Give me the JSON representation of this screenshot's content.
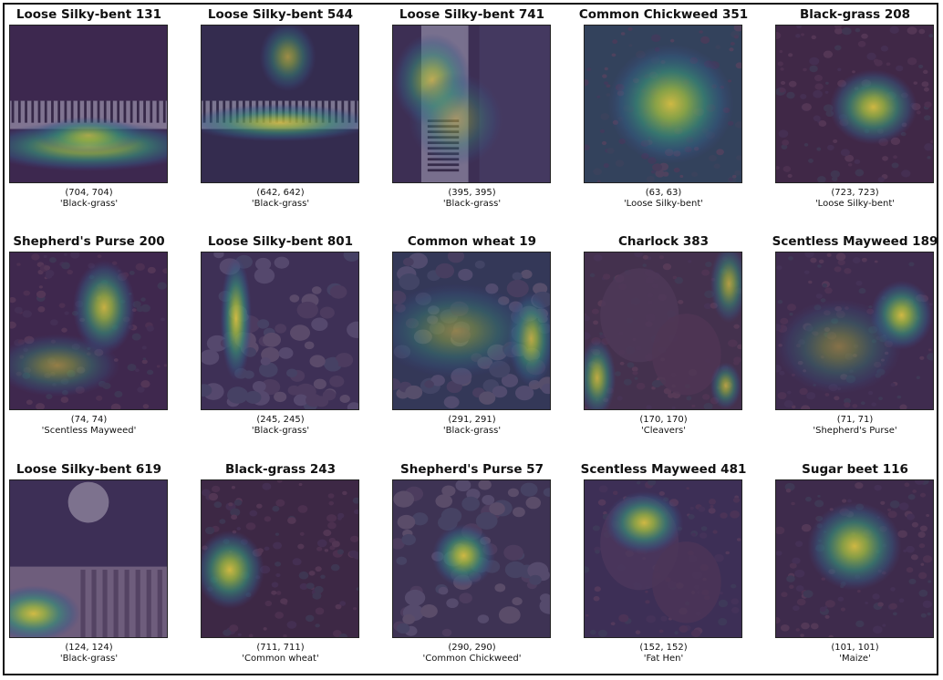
{
  "panels": [
    {
      "title": "Loose Silky-bent 131",
      "coords": "(704, 704)",
      "label": "'Black-grass'",
      "heat": [
        [
          0.5,
          0.77,
          0.7,
          0.16,
          1.0
        ],
        [
          0.5,
          0.7,
          0.35,
          0.12,
          0.7
        ]
      ],
      "bg": "#3a2a4a",
      "scene": "ruler"
    },
    {
      "title": "Loose Silky-bent 544",
      "coords": "(642, 642)",
      "label": "'Black-grass'",
      "heat": [
        [
          0.5,
          0.62,
          0.6,
          0.12,
          0.9
        ],
        [
          0.55,
          0.2,
          0.18,
          0.22,
          0.7
        ]
      ],
      "bg": "#2f2f4a",
      "scene": "ruler"
    },
    {
      "title": "Loose Silky-bent 741",
      "coords": "(395, 395)",
      "label": "'Black-grass'",
      "heat": [
        [
          0.25,
          0.35,
          0.25,
          0.3,
          0.8
        ],
        [
          0.4,
          0.6,
          0.3,
          0.3,
          0.5
        ]
      ],
      "bg": "#3a3350",
      "scene": "ruler2"
    },
    {
      "title": "Common Chickweed 351",
      "coords": "(63, 63)",
      "label": "'Loose Silky-bent'",
      "heat": [
        [
          0.55,
          0.5,
          0.4,
          0.38,
          1.0
        ]
      ],
      "bg": "#2e4a5a",
      "scene": "soil"
    },
    {
      "title": "Black-grass 208",
      "coords": "(723, 723)",
      "label": "'Loose Silky-bent'",
      "heat": [
        [
          0.62,
          0.52,
          0.28,
          0.24,
          1.0
        ]
      ],
      "bg": "#3d2a40",
      "scene": "soil"
    },
    {
      "title": "Shepherd's Purse 200",
      "coords": "(74, 74)",
      "label": "'Scentless Mayweed'",
      "heat": [
        [
          0.6,
          0.35,
          0.2,
          0.3,
          0.95
        ],
        [
          0.3,
          0.72,
          0.4,
          0.2,
          0.6
        ]
      ],
      "bg": "#3c2a48",
      "scene": "soil"
    },
    {
      "title": "Loose Silky-bent 801",
      "coords": "(245, 245)",
      "label": "'Black-grass'",
      "heat": [
        [
          0.22,
          0.42,
          0.1,
          0.4,
          1.0
        ]
      ],
      "bg": "#3b3452",
      "scene": "pebble"
    },
    {
      "title": "Common wheat 19",
      "coords": "(291, 291)",
      "label": "'Black-grass'",
      "heat": [
        [
          0.88,
          0.55,
          0.15,
          0.3,
          0.9
        ],
        [
          0.4,
          0.5,
          0.5,
          0.3,
          0.55
        ]
      ],
      "bg": "#2f3d55",
      "scene": "pebble"
    },
    {
      "title": "Charlock 383",
      "coords": "(170, 170)",
      "label": "'Cleavers'",
      "heat": [
        [
          0.08,
          0.8,
          0.12,
          0.25,
          0.9
        ],
        [
          0.92,
          0.2,
          0.12,
          0.25,
          0.8
        ],
        [
          0.9,
          0.85,
          0.1,
          0.15,
          0.8
        ]
      ],
      "bg": "#423548",
      "scene": "leaf"
    },
    {
      "title": "Scentless Mayweed 189",
      "coords": "(71, 71)",
      "label": "'Shepherd's Purse'",
      "heat": [
        [
          0.8,
          0.4,
          0.2,
          0.22,
          1.0
        ],
        [
          0.4,
          0.6,
          0.4,
          0.3,
          0.5
        ]
      ],
      "bg": "#3c2f4a",
      "scene": "soil"
    },
    {
      "title": "Loose Silky-bent 619",
      "coords": "(124, 124)",
      "label": "'Black-grass'",
      "heat": [
        [
          0.15,
          0.85,
          0.3,
          0.18,
          1.0
        ]
      ],
      "bg": "#3a3352",
      "scene": "ruler3"
    },
    {
      "title": "Black-grass 243",
      "coords": "(711, 711)",
      "label": "'Common wheat'",
      "heat": [
        [
          0.18,
          0.57,
          0.22,
          0.25,
          1.0
        ]
      ],
      "bg": "#3a2a3e",
      "scene": "soil"
    },
    {
      "title": "Shepherd's Purse 57",
      "coords": "(290, 290)",
      "label": "'Common Chickweed'",
      "heat": [
        [
          0.45,
          0.48,
          0.2,
          0.2,
          1.0
        ]
      ],
      "bg": "#3b3850",
      "scene": "pebble"
    },
    {
      "title": "Scentless Mayweed 481",
      "coords": "(152, 152)",
      "label": "'Fat Hen'",
      "heat": [
        [
          0.38,
          0.27,
          0.25,
          0.2,
          1.0
        ]
      ],
      "bg": "#3a3352",
      "scene": "leaf"
    },
    {
      "title": "Sugar beet 116",
      "coords": "(101, 101)",
      "label": "'Maize'",
      "heat": [
        [
          0.5,
          0.42,
          0.3,
          0.28,
          1.0
        ]
      ],
      "bg": "#3b2e46",
      "scene": "soil"
    }
  ]
}
